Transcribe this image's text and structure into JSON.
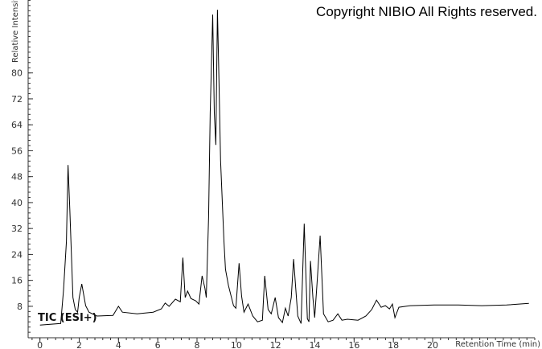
{
  "copyright": "Copyright NIBIO All Rights reserved.",
  "chart_data": {
    "type": "line",
    "title": "",
    "xlabel": "Retention Time (min)",
    "ylabel": "Relative Intensity",
    "trace_label": "TIC (ESI+)",
    "xlim": [
      -0.6,
      25.2
    ],
    "ylim": [
      -1.7,
      102.5
    ],
    "x_ticks": [
      0,
      2,
      4,
      6,
      8,
      10,
      12,
      14,
      16,
      18,
      20
    ],
    "y_ticks": [
      8,
      16,
      24,
      32,
      40,
      48,
      56,
      64,
      72,
      80
    ],
    "grid": false,
    "line_color": "#000000",
    "series": [
      {
        "x": [
          0,
          1.06,
          1.2,
          1.35,
          1.43,
          1.52,
          1.68,
          1.8,
          1.92,
          2.0,
          2.13,
          2.33,
          2.5,
          2.9,
          3.72,
          4.0,
          4.2,
          4.95,
          5.77,
          6.18,
          6.38,
          6.58,
          6.9,
          7.15,
          7.28,
          7.4,
          7.52,
          7.69,
          7.93,
          8.1,
          8.26,
          8.4,
          8.47,
          8.59,
          8.67,
          8.8,
          8.88,
          8.96,
          9.04,
          9.12,
          9.2,
          9.37,
          9.45,
          9.6,
          9.86,
          9.98,
          10.14,
          10.27,
          10.39,
          10.6,
          10.84,
          11.08,
          11.33,
          11.45,
          11.62,
          11.78,
          11.98,
          12.15,
          12.35,
          12.5,
          12.64,
          12.8,
          12.92,
          13.13,
          13.3,
          13.46,
          13.62,
          13.7,
          13.78,
          13.9,
          13.99,
          14.11,
          14.27,
          14.44,
          14.68,
          14.93,
          15.17,
          15.38,
          15.66,
          16.2,
          16.6,
          16.9,
          17.14,
          17.38,
          17.59,
          17.8,
          17.95,
          18.08,
          18.28,
          18.86,
          20.08,
          21.3,
          22.5,
          23.76,
          24.9
        ],
        "y": [
          2.2,
          2.7,
          13,
          28,
          51.6,
          38,
          10.7,
          7,
          6.2,
          10.7,
          14.9,
          8.2,
          6.2,
          5,
          5.2,
          8,
          6.2,
          5.7,
          6.2,
          7.2,
          9,
          8,
          10.2,
          9.4,
          23,
          10.7,
          12.7,
          10.4,
          9.7,
          8.7,
          17.4,
          13.6,
          10.7,
          35.5,
          67.7,
          98,
          67.7,
          57.8,
          99.5,
          77.7,
          52.9,
          28,
          19.4,
          14.4,
          8.2,
          7.4,
          21.3,
          11.2,
          6.2,
          8.7,
          5,
          3.2,
          3.7,
          17.4,
          7,
          5.7,
          10.7,
          4.5,
          3,
          7.4,
          5,
          10.7,
          22.6,
          5,
          2.7,
          33.5,
          4.2,
          3.2,
          22,
          10.7,
          4.5,
          14.9,
          29.8,
          5.7,
          3.2,
          3.7,
          5.7,
          3.7,
          4,
          3.7,
          5,
          7,
          9.9,
          7.7,
          8.2,
          7.2,
          8.7,
          4.5,
          7.7,
          8.2,
          8.4,
          8.4,
          8.2,
          8.4,
          8.9
        ]
      }
    ]
  }
}
